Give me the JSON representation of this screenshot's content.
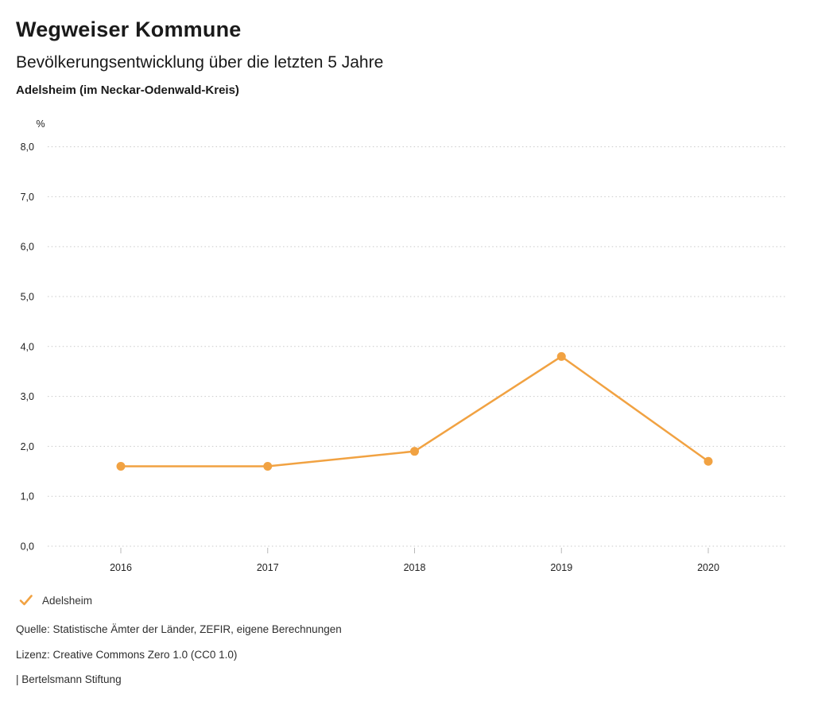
{
  "header": {
    "title": "Wegweiser Kommune",
    "subtitle": "Bevölkerungsentwicklung über die letzten 5 Jahre",
    "region": "Adelsheim (im Neckar-Odenwald-Kreis)"
  },
  "chart_data": {
    "type": "line",
    "title": "Bevölkerungsentwicklung über die letzten 5 Jahre",
    "ylabel": "%",
    "xlabel": "",
    "x": [
      "2016",
      "2017",
      "2018",
      "2019",
      "2020"
    ],
    "series": [
      {
        "name": "Adelsheim",
        "values": [
          1.6,
          1.6,
          1.9,
          3.8,
          1.7
        ],
        "color": "#F1A242"
      }
    ],
    "ylim": [
      0,
      8
    ],
    "ytick_step": 1,
    "ytick_labels": [
      "0,0",
      "1,0",
      "2,0",
      "3,0",
      "4,0",
      "5,0",
      "6,0",
      "7,0",
      "8,0"
    ],
    "grid": "horizontal-dotted",
    "legend_position": "bottom-left"
  },
  "legend": {
    "items": [
      {
        "label": "Adelsheim",
        "color": "#F1A242"
      }
    ]
  },
  "footer": {
    "source": "Quelle: Statistische Ämter der Länder, ZEFIR, eigene Berechnungen",
    "license": "Lizenz: Creative Commons Zero 1.0 (CC0 1.0)",
    "attribution": "| Bertelsmann Stiftung"
  },
  "colors": {
    "accent": "#F1A242",
    "grid": "#c9c9c9",
    "text": "#1a1a1a"
  }
}
